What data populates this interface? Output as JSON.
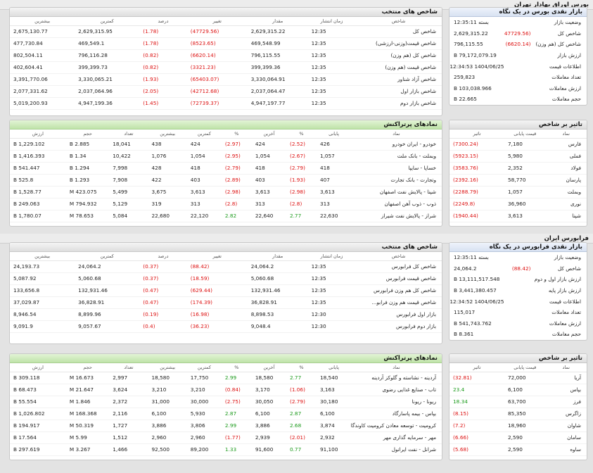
{
  "tehran": {
    "section_title": "بورس اوراق بهادار تهران",
    "market_summary": {
      "title": "بازار نقدی بورس در یک نگاه",
      "rows": [
        {
          "label": "وضعیت بازار",
          "value": "بسته 12:35:11",
          "change": ""
        },
        {
          "label": "شاخص کل",
          "value": "2,629,315.22",
          "change": "(47729.56)"
        },
        {
          "label": "شاخص کل (هم وزن)",
          "value": "796,115.55",
          "change": "(6620.14)"
        },
        {
          "label": "ارزش بازار",
          "value": "79,172,079.19 B",
          "change": ""
        },
        {
          "label": "اطلاعات قیمت",
          "value": "1404/06/25 12:34:53",
          "change": ""
        },
        {
          "label": "تعداد معاملات",
          "value": "259,823",
          "change": ""
        },
        {
          "label": "ارزش معاملات",
          "value": "103,038.966 B",
          "change": ""
        },
        {
          "label": "حجم معاملات",
          "value": "22.665 B",
          "change": ""
        }
      ]
    },
    "indices": {
      "title": "شاخص های منتخب",
      "columns": [
        "شاخص",
        "زمان انتشار",
        "مقدار",
        "تغییر",
        "درصد",
        "کمترین",
        "بیشترین"
      ],
      "rows": [
        [
          "شاخص کل",
          "12:35",
          "2,629,315.22",
          "(47729.56)",
          "(1.78)",
          "2,629,315.95",
          "2,675,130.77"
        ],
        [
          "شاخص قیمت(وزنی-ارزشی)",
          "12:35",
          "469,548.99",
          "(8523.65)",
          "(1.78)",
          "469,549.1",
          "477,730.84"
        ],
        [
          "شاخص کل (هم وزن)",
          "12:35",
          "796,115.55",
          "(6620.14)",
          "(0.82)",
          "796,116.28",
          "802,504.11"
        ],
        [
          "شاخص قیمت (هم وزن)",
          "12:35",
          "399,399.36",
          "(3321.23)",
          "(0.82)",
          "399,399.73",
          "402,604.41"
        ],
        [
          "شاخص آزاد شناور",
          "12:35",
          "3,330,064.91",
          "(65403.07)",
          "(1.93)",
          "3,330,065.21",
          "3,391,770.06"
        ],
        [
          "شاخص بازار اول",
          "12:35",
          "2,037,064.47",
          "(42712.68)",
          "(2.05)",
          "2,037,064.96",
          "2,077,331.62"
        ],
        [
          "شاخص بازار دوم",
          "12:35",
          "4,947,197.77",
          "(72739.37)",
          "(1.45)",
          "4,947,199.36",
          "5,019,200.93"
        ]
      ]
    },
    "impact": {
      "title": "تاثیر بر شاخص",
      "columns": [
        "نماد",
        "قیمت پایانی",
        "تاثیر"
      ],
      "rows": [
        [
          "فارس",
          "7,180",
          "(7300.24)"
        ],
        [
          "فملی",
          "5,980",
          "(5923.15)"
        ],
        [
          "فولاد",
          "2,352",
          "(3583.76)"
        ],
        [
          "پارسان",
          "58,770",
          "(2392.16)"
        ],
        [
          "وبملت",
          "1,057",
          "(2288.79)"
        ],
        [
          "نوری",
          "36,960",
          "(2249.8)"
        ],
        [
          "شپنا",
          "3,613",
          "(1940.44)"
        ]
      ]
    },
    "active": {
      "title": "نمادهای پرتراکنش",
      "columns": [
        "نماد",
        "پایانی",
        "%",
        "آخرین",
        "%",
        "کمترین",
        "بیشترین",
        "تعداد",
        "حجم",
        "ارزش"
      ],
      "rows": [
        [
          "خودرو - ایران خودرو",
          "426",
          "(2.52)",
          "424",
          "(2.97)",
          "424",
          "438",
          "18,041",
          "2.885 B",
          "1,229.102 B"
        ],
        [
          "وبملت - بانک ملت",
          "1,057",
          "(2.67)",
          "1,054",
          "(2.95)",
          "1,054",
          "1,076",
          "10,422",
          "1.34 B",
          "1,416.393 B"
        ],
        [
          "خساپا - سایپا",
          "418",
          "(2.79)",
          "418",
          "(2.79)",
          "418",
          "428",
          "7,998",
          "1.294 B",
          "541.447 B"
        ],
        [
          "وتجارت - بانک تجارت",
          "407",
          "(1.93)",
          "403",
          "(2.89)",
          "403",
          "422",
          "7,908",
          "1.293 B",
          "525.8 B"
        ],
        [
          "شپنا - پالایش نفت اصفهان",
          "3,613",
          "(2.98)",
          "3,613",
          "(2.98)",
          "3,613",
          "3,675",
          "5,499",
          "423.075 M",
          "1,528.77 B"
        ],
        [
          "ذوب - ذوب آهن اصفهان",
          "313",
          "(2.8)",
          "313",
          "(2.8)",
          "313",
          "319",
          "5,129",
          "794.932 M",
          "249.063 B"
        ],
        [
          "شراز - پالایش نفت شیراز",
          "22,630",
          "2.77",
          "22,640",
          "2.82",
          "22,120",
          "22,680",
          "5,084",
          "78.653 M",
          "1,780.07 B"
        ]
      ]
    }
  },
  "farabourse": {
    "section_title": "فرابورس ایران",
    "market_summary": {
      "title": "بازار نقدی فرابورس در یک نگاه",
      "rows": [
        {
          "label": "وضعیت بازار",
          "value": "بسته 12:35:11",
          "change": ""
        },
        {
          "label": "شاخص کل",
          "value": "24,064.2",
          "change": "(88.42)"
        },
        {
          "label": "ارزش بازار اول و دوم",
          "value": "13,111,517.548 B",
          "change": ""
        },
        {
          "label": "ارزش بازار پایه",
          "value": "3,441,380.457 B",
          "change": ""
        },
        {
          "label": "اطلاعات قیمت",
          "value": "1404/06/25 12:34:52",
          "change": ""
        },
        {
          "label": "تعداد معاملات",
          "value": "115,017",
          "change": ""
        },
        {
          "label": "ارزش معاملات",
          "value": "541,743.762 B",
          "change": ""
        },
        {
          "label": "حجم معاملات",
          "value": "8.361 B",
          "change": ""
        }
      ]
    },
    "indices": {
      "title": "شاخص های منتخب",
      "columns": [
        "شاخص",
        "زمان انتشار",
        "مقدار",
        "تغییر",
        "درصد",
        "کمترین",
        "بیشترین"
      ],
      "rows": [
        [
          "شاخص کل فرابورس",
          "12:35",
          "24,064.2",
          "(88.42)",
          "(0.37)",
          "24,064.2",
          "24,193.73"
        ],
        [
          "شاخص قیمت فرابورس",
          "12:35",
          "5,060.68",
          "(18.59)",
          "(0.37)",
          "5,060.68",
          "5,087.92"
        ],
        [
          "شاخص کل هم وزن فرابورس",
          "12:35",
          "132,931.46",
          "(629.44)",
          "(0.47)",
          "132,931.46",
          "133,656.8"
        ],
        [
          "شاخص قیمت هم وزن فرابو...",
          "12:35",
          "36,828.91",
          "(174.39)",
          "(0.47)",
          "36,828.91",
          "37,029.87"
        ],
        [
          "بازار اول فرابورس",
          "12:30",
          "8,898.53",
          "(16.98)",
          "(0.19)",
          "8,899.96",
          "8,946.54"
        ],
        [
          "بازار دوم فرابورس",
          "12:30",
          "9,048.4",
          "(36.23)",
          "(0.4)",
          "9,057.67",
          "9,091.9"
        ]
      ]
    },
    "impact": {
      "title": "تاثیر بر شاخص",
      "columns": [
        "نماد",
        "قیمت پایانی",
        "تاثیر"
      ],
      "rows": [
        [
          "آریا",
          "72,000",
          "(32.81)"
        ],
        [
          "بپاس",
          "6,100",
          "23.4"
        ],
        [
          "فرز",
          "63,700",
          "18.34"
        ],
        [
          "زاگرس",
          "85,350",
          "(8.15)"
        ],
        [
          "شاوان",
          "18,960",
          "(7.2)"
        ],
        [
          "سامان",
          "2,590",
          "(6.66)"
        ],
        [
          "ساوه",
          "2,590",
          "(5.68)"
        ]
      ]
    },
    "active": {
      "title": "نمادهای پرتراکنش",
      "columns": [
        "نماد",
        "پایانی",
        "%",
        "آخرین",
        "%",
        "کمترین",
        "بیشترین",
        "تعداد",
        "حجم",
        "ارزش"
      ],
      "rows": [
        [
          "آردینه - نشاسته و گلوکز آردینه",
          "18,540",
          "2.77",
          "18,580",
          "2.99",
          "17,750",
          "18,580",
          "2,997",
          "16.673 M",
          "309.118 B"
        ],
        [
          "تاب - صنایع غذایی رضوی",
          "3,163",
          "(1.06)",
          "3,170",
          "(0.84)",
          "3,210",
          "3,210",
          "3,624",
          "21.647 M",
          "68.473 B"
        ],
        [
          "ریونا - ریونا",
          "30,180",
          "(2.79)",
          "30,050",
          "(2.75)",
          "30,000",
          "31,000",
          "2,372",
          "1.846 M",
          "55.554 B"
        ],
        [
          "بپاس - بیمه پاسارگاد",
          "6,100",
          "2.87",
          "6,100",
          "2.87",
          "5,930",
          "6,100",
          "2,116",
          "168.368 M",
          "1,026.802 B"
        ],
        [
          "کرومیت - توسعه معادن کرومیت کاوندگان",
          "3,874",
          "2.68",
          "3,886",
          "2.99",
          "3,806",
          "3,886",
          "1,727",
          "50.319 M",
          "194.917 B"
        ],
        [
          "مهر - سرمایه گذاری مهر",
          "2,932",
          "(2.01)",
          "2,939",
          "(1.77)",
          "2,960",
          "2,960",
          "1,512",
          "5.99 M",
          "17.564 B"
        ],
        [
          "شرانل - نفت ایرانول",
          "91,100",
          "0.77",
          "91,600",
          "1.33",
          "89,200",
          "92,500",
          "1,466",
          "3.267 M",
          "297.619 B"
        ]
      ]
    }
  }
}
